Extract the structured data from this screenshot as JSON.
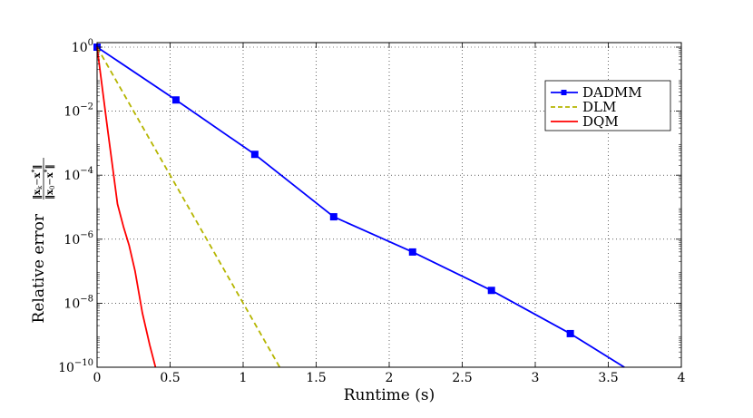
{
  "chart_data": {
    "type": "line",
    "xlabel": "Runtime (s)",
    "ylabel": {
      "prefix": "Relative error",
      "numerator": "x",
      "numerator_sub": "k",
      "numerator_minus": "−",
      "numerator_star": "x",
      "numerator_star_sup": "*",
      "denominator": "x",
      "denominator_sub": "0",
      "denominator_minus": "−",
      "denominator_star": "x",
      "denominator_star_sup": "*"
    },
    "xlim": [
      0,
      4
    ],
    "ylim_log10": [
      -10,
      0
    ],
    "y_scale": "log",
    "grid": true,
    "legend_position": "top-right",
    "x_ticks": [
      "0",
      "0.5",
      "1",
      "1.5",
      "2",
      "2.5",
      "3",
      "3.5",
      "4"
    ],
    "x_tick_values": [
      0,
      0.5,
      1,
      1.5,
      2,
      2.5,
      3,
      3.5,
      4
    ],
    "y_ticks": [
      {
        "base": "10",
        "exp": "0",
        "log10": 0
      },
      {
        "base": "10",
        "exp": "−2",
        "log10": -2
      },
      {
        "base": "10",
        "exp": "−4",
        "log10": -4
      },
      {
        "base": "10",
        "exp": "−6",
        "log10": -6
      },
      {
        "base": "10",
        "exp": "−8",
        "log10": -8
      },
      {
        "base": "10",
        "exp": "−10",
        "log10": -10
      }
    ],
    "series": [
      {
        "name": "DADMM",
        "color": "#0000ff",
        "dash": "solid",
        "marker": "square",
        "points": [
          {
            "x": 0,
            "log10y": 0
          },
          {
            "x": 0.54,
            "log10y": -1.65
          },
          {
            "x": 1.08,
            "log10y": -3.35
          },
          {
            "x": 1.62,
            "log10y": -5.3
          },
          {
            "x": 2.16,
            "log10y": -6.4
          },
          {
            "x": 2.7,
            "log10y": -7.6
          },
          {
            "x": 3.24,
            "log10y": -8.95
          },
          {
            "x": 3.61,
            "log10y": -10
          }
        ],
        "marker_indices": [
          0,
          1,
          2,
          3,
          4,
          5,
          6
        ]
      },
      {
        "name": "DLM",
        "color": "#b5b500",
        "dash": "dashed",
        "marker": "none",
        "points": [
          {
            "x": 0,
            "log10y": 0
          },
          {
            "x": 1.25,
            "log10y": -10
          }
        ]
      },
      {
        "name": "DQM",
        "color": "#ff0000",
        "dash": "solid",
        "marker": "none",
        "points": [
          {
            "x": 0,
            "log10y": 0
          },
          {
            "x": 0.07,
            "log10y": -2.5
          },
          {
            "x": 0.14,
            "log10y": -4.9
          },
          {
            "x": 0.18,
            "log10y": -5.6
          },
          {
            "x": 0.22,
            "log10y": -6.2
          },
          {
            "x": 0.26,
            "log10y": -7.0
          },
          {
            "x": 0.31,
            "log10y": -8.3
          },
          {
            "x": 0.36,
            "log10y": -9.3
          },
          {
            "x": 0.4,
            "log10y": -10
          }
        ]
      }
    ]
  }
}
